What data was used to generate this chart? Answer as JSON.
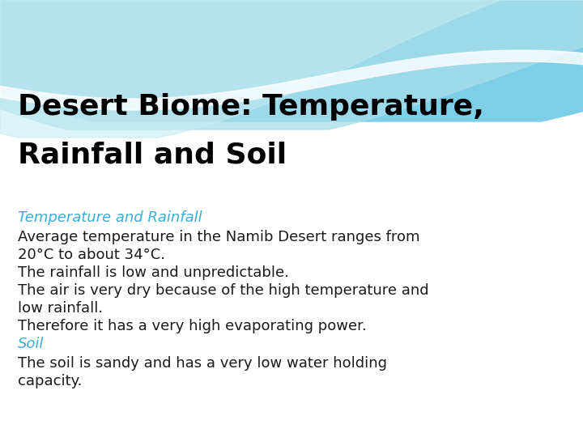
{
  "title_line1": "Desert Biome: Temperature,",
  "title_line2": "Rainfall and Soil",
  "title_color": "#000000",
  "title_fontsize": 26,
  "subheading1": "Temperature and Rainfall",
  "subheading1_color": "#3BADD4",
  "subheading2": "Soil",
  "subheading2_color": "#3BADD4",
  "subheading_fontsize": 13,
  "body_fontsize": 13,
  "body_color": "#1a1a1a",
  "body_lines": [
    "Average temperature in the Namib Desert ranges from",
    "20°C to about 34°C.",
    "The rainfall is low and unpredictable.",
    "The air is very dry because of the high temperature and",
    "low rainfall.",
    "Therefore it has a very high evaporating power."
  ],
  "body_line2": [
    "The soil is sandy and has a very low water holding",
    "capacity."
  ],
  "bg_color": "#ffffff"
}
